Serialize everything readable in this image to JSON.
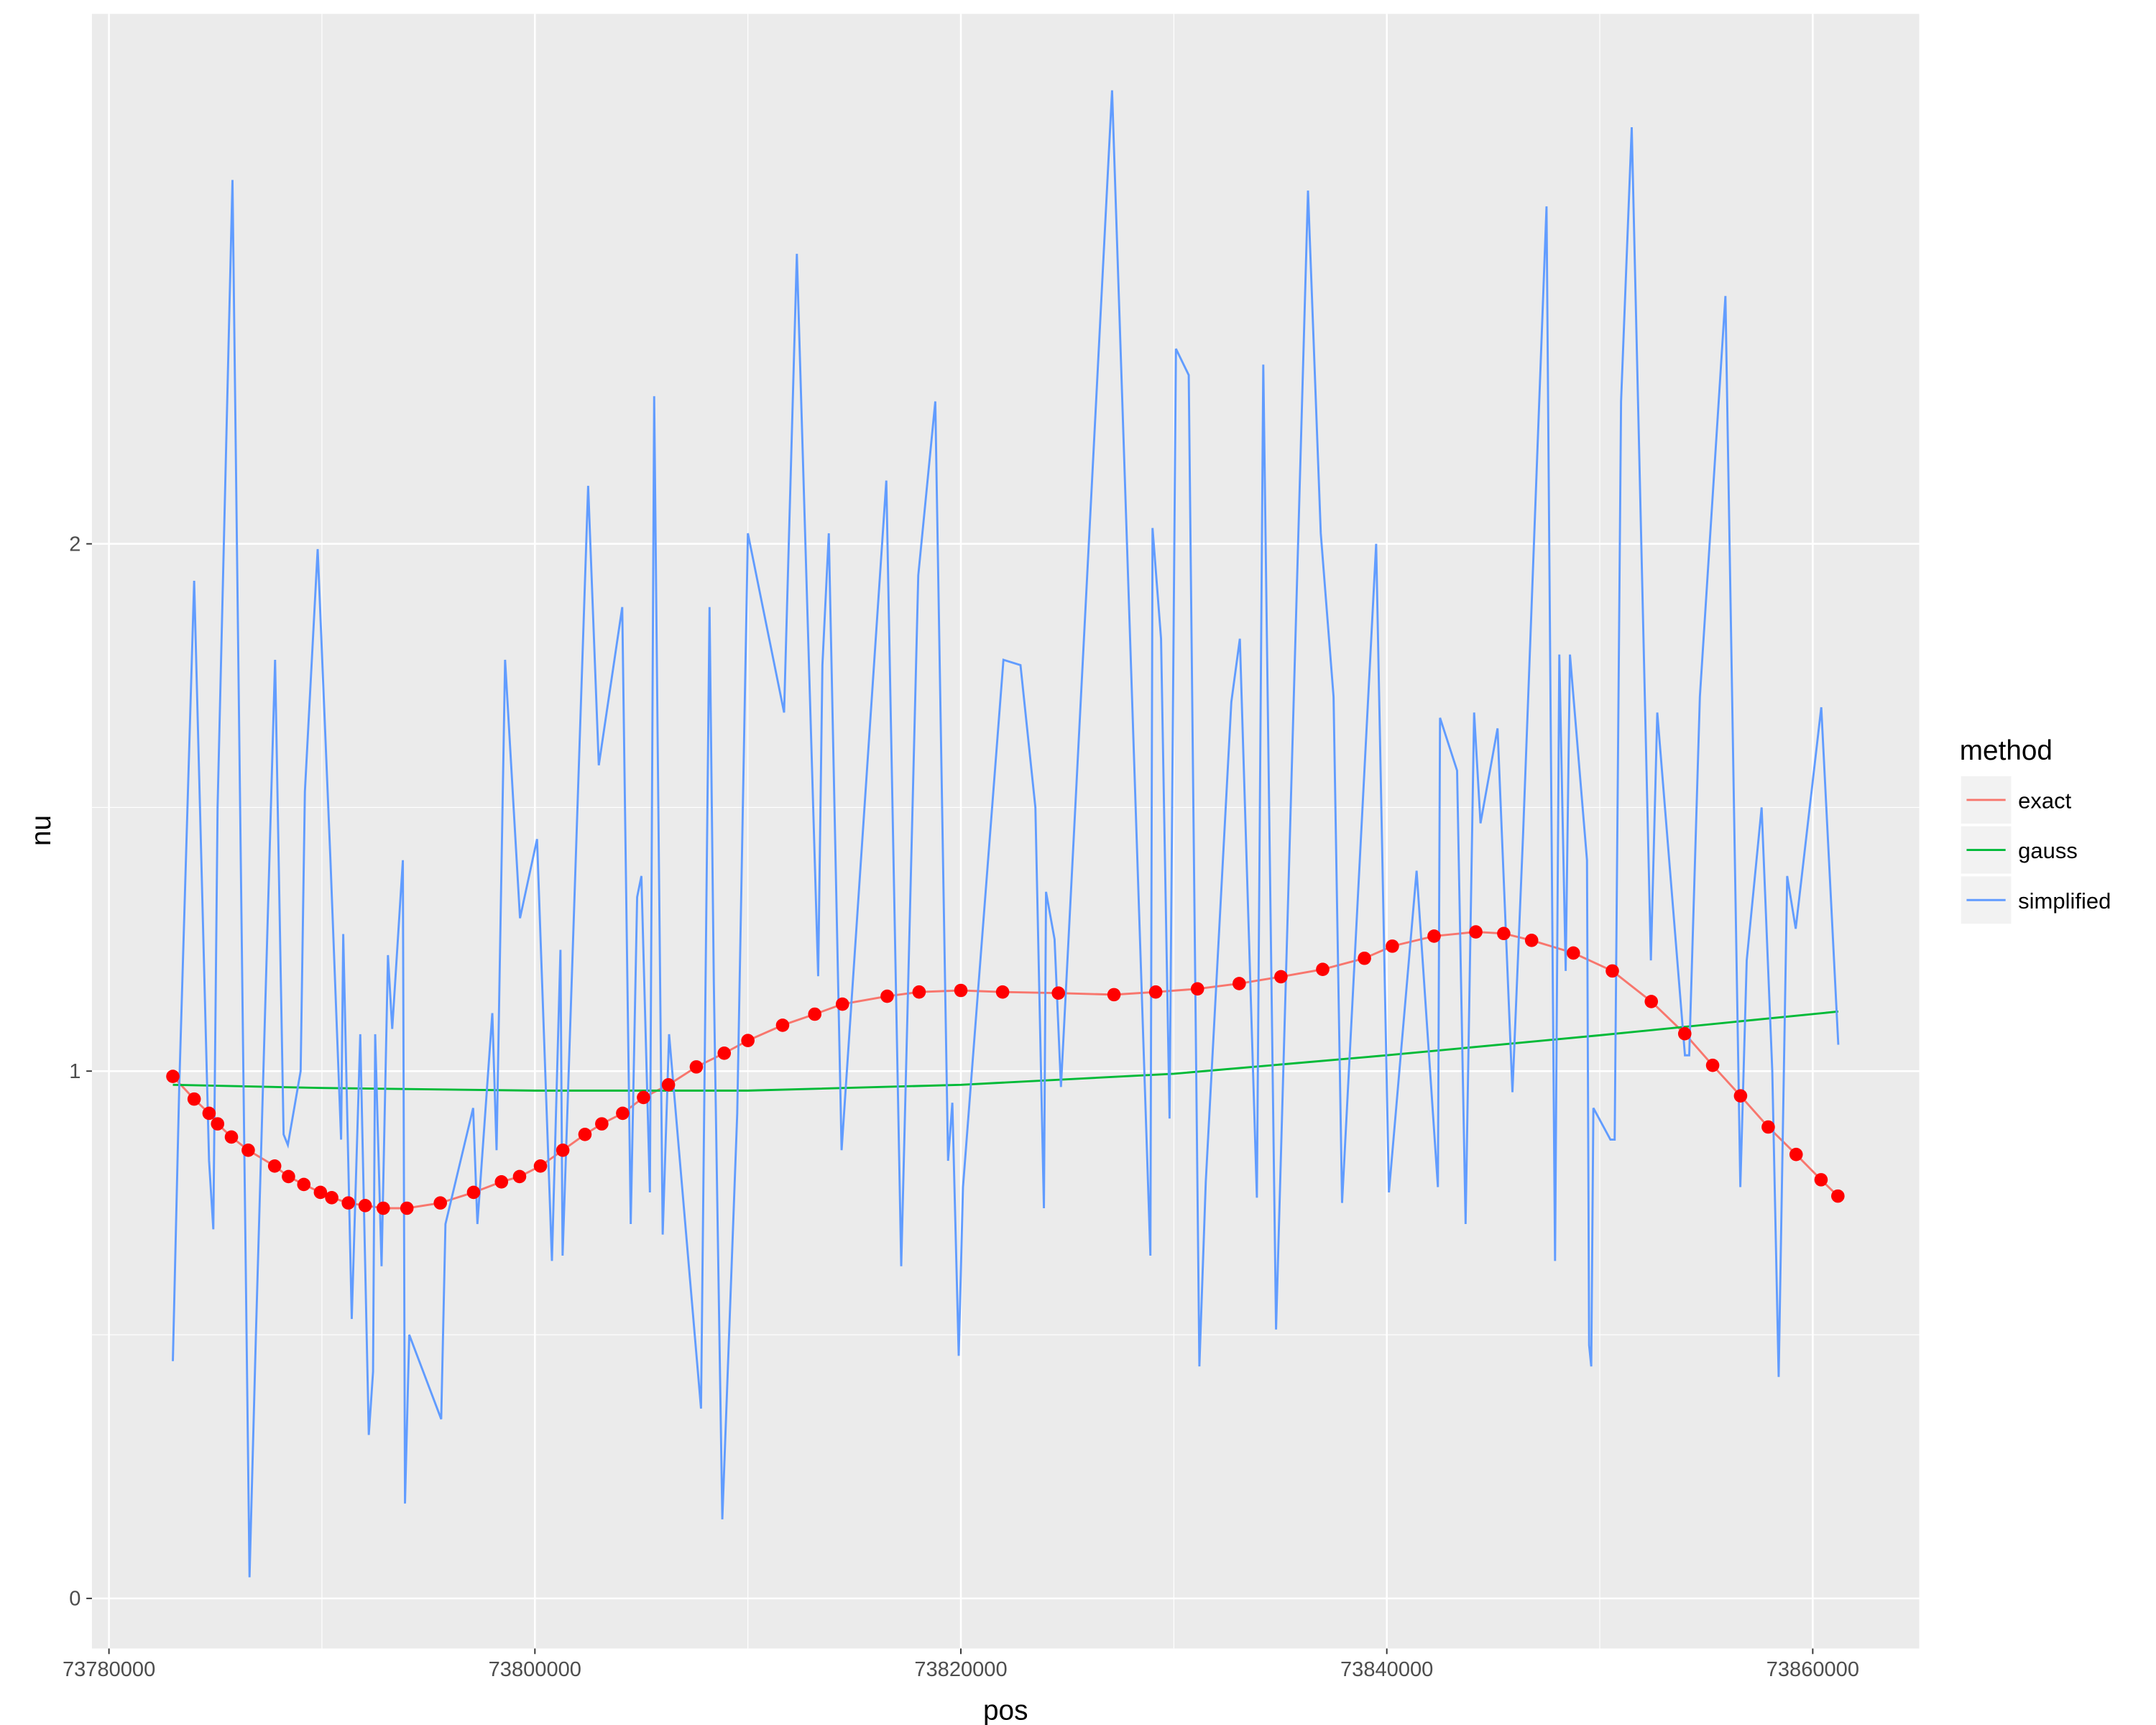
{
  "chart_data": {
    "type": "line",
    "x_label": "pos",
    "y_label": "nu",
    "xlim": [
      73779200,
      73865000
    ],
    "ylim": [
      -0.095,
      3.005
    ],
    "xticks": [
      73780000,
      73800000,
      73820000,
      73840000,
      73860000
    ],
    "yticks": [
      0,
      1,
      2
    ],
    "grid": true,
    "minor_grid": true,
    "legend": {
      "title": "method",
      "position": "right"
    },
    "point_series": "exact",
    "point_color": "#ff0000",
    "series": [
      {
        "name": "exact",
        "color": "#F8766D",
        "x": [
          73783000,
          73784000,
          73784700,
          73785100,
          73785750,
          73786540,
          73787780,
          73788430,
          73789150,
          73789930,
          73790460,
          73791240,
          73792030,
          73792880,
          73793990,
          73795560,
          73797120,
          73798430,
          73799280,
          73800260,
          73801310,
          73802350,
          73803140,
          73804120,
          73805100,
          73806270,
          73807580,
          73808890,
          73810000,
          73811630,
          73813140,
          73814440,
          73816540,
          73818040,
          73820000,
          73821960,
          73824580,
          73827190,
          73829150,
          73831110,
          73833070,
          73835030,
          73836990,
          73838950,
          73840260,
          73842220,
          73844180,
          73845490,
          73846800,
          73848760,
          73850590,
          73852420,
          73853990,
          73855300,
          73856610,
          73857910,
          73859220,
          73860390,
          73861180
        ],
        "values": [
          0.99,
          0.947,
          0.92,
          0.9,
          0.875,
          0.85,
          0.82,
          0.8,
          0.785,
          0.77,
          0.76,
          0.75,
          0.745,
          0.74,
          0.74,
          0.75,
          0.77,
          0.79,
          0.8,
          0.82,
          0.85,
          0.88,
          0.9,
          0.92,
          0.95,
          0.974,
          1.008,
          1.034,
          1.058,
          1.087,
          1.108,
          1.127,
          1.142,
          1.15,
          1.153,
          1.15,
          1.148,
          1.145,
          1.15,
          1.156,
          1.166,
          1.179,
          1.193,
          1.214,
          1.237,
          1.256,
          1.264,
          1.261,
          1.248,
          1.224,
          1.19,
          1.132,
          1.071,
          1.011,
          0.953,
          0.894,
          0.842,
          0.794,
          0.763
        ]
      },
      {
        "name": "gauss",
        "color": "#00BA38",
        "x": [
          73783000,
          73790000,
          73800000,
          73810000,
          73820000,
          73830000,
          73840000,
          73850000,
          73861200
        ],
        "values": [
          0.974,
          0.968,
          0.963,
          0.963,
          0.974,
          0.995,
          1.03,
          1.068,
          1.113
        ]
      },
      {
        "name": "simplified",
        "color": "#619CFF",
        "x": [
          73783000,
          73783300,
          73784000,
          73784700,
          73784900,
          73785100,
          73785800,
          73786600,
          73786900,
          73787800,
          73788200,
          73788400,
          73789000,
          73789200,
          73789800,
          73790400,
          73790900,
          73791000,
          73791400,
          73791800,
          73792200,
          73792400,
          73792500,
          73792800,
          73793100,
          73793300,
          73793800,
          73793900,
          73794100,
          73795600,
          73795800,
          73797100,
          73797300,
          73798000,
          73798200,
          73798600,
          73799300,
          73800100,
          73800800,
          73801200,
          73801300,
          73802500,
          73803000,
          73804100,
          73804500,
          73804800,
          73805000,
          73805400,
          73805600,
          73806000,
          73806300,
          73807800,
          73808200,
          73808400,
          73808800,
          73809500,
          73810000,
          73811700,
          73812300,
          73813300,
          73813500,
          73813800,
          73814400,
          73816500,
          73817200,
          73818000,
          73818800,
          73819400,
          73819600,
          73819900,
          73820100,
          73822000,
          73822800,
          73823500,
          73823900,
          73824000,
          73824400,
          73824700,
          73827100,
          73828900,
          73829000,
          73829400,
          73829800,
          73830100,
          73830700,
          73831200,
          73831500,
          73832700,
          73833100,
          73833900,
          73834200,
          73834800,
          73836300,
          73836900,
          73837500,
          73837900,
          73839500,
          73840100,
          73841400,
          73842400,
          73842500,
          73843300,
          73843700,
          73844100,
          73844400,
          73845200,
          73845900,
          73846400,
          73847500,
          73847900,
          73848100,
          73848400,
          73848600,
          73849400,
          73849500,
          73849600,
          73849700,
          73850500,
          73850700,
          73851000,
          73851500,
          73852400,
          73852700,
          73854000,
          73854200,
          73854700,
          73855900,
          73856600,
          73856900,
          73857600,
          73858100,
          73858400,
          73858800,
          73859200,
          73860400,
          73861200
        ],
        "values": [
          0.45,
          0.97,
          1.93,
          0.83,
          0.7,
          1.5,
          2.69,
          0.04,
          0.5,
          1.78,
          0.88,
          0.86,
          1.0,
          1.53,
          1.99,
          1.4,
          0.87,
          1.26,
          0.53,
          1.07,
          0.31,
          0.43,
          1.07,
          0.63,
          1.22,
          1.08,
          1.4,
          0.18,
          0.5,
          0.34,
          0.71,
          0.93,
          0.71,
          1.11,
          0.85,
          1.78,
          1.29,
          1.44,
          0.64,
          1.23,
          0.65,
          2.11,
          1.58,
          1.88,
          0.71,
          1.33,
          1.37,
          0.77,
          2.28,
          0.69,
          1.07,
          0.36,
          1.88,
          1.17,
          0.15,
          0.92,
          2.02,
          1.68,
          2.55,
          1.18,
          1.77,
          2.02,
          0.85,
          2.12,
          0.63,
          1.94,
          2.27,
          0.83,
          0.94,
          0.46,
          0.78,
          1.78,
          1.77,
          1.5,
          0.74,
          1.34,
          1.25,
          0.97,
          2.86,
          0.65,
          2.03,
          1.82,
          0.91,
          2.37,
          2.32,
          0.44,
          0.79,
          1.7,
          1.82,
          0.76,
          2.34,
          0.51,
          2.67,
          2.02,
          1.71,
          0.75,
          2.0,
          0.77,
          1.38,
          0.78,
          1.67,
          1.57,
          0.71,
          1.68,
          1.47,
          1.65,
          0.96,
          1.45,
          2.64,
          0.64,
          1.79,
          1.19,
          1.79,
          1.4,
          0.48,
          0.44,
          0.93,
          0.87,
          0.87,
          2.27,
          2.79,
          1.21,
          1.68,
          1.03,
          1.03,
          1.71,
          2.47,
          0.78,
          1.21,
          1.5,
          1.0,
          0.42,
          1.37,
          1.27,
          1.69,
          1.05
        ]
      }
    ]
  }
}
